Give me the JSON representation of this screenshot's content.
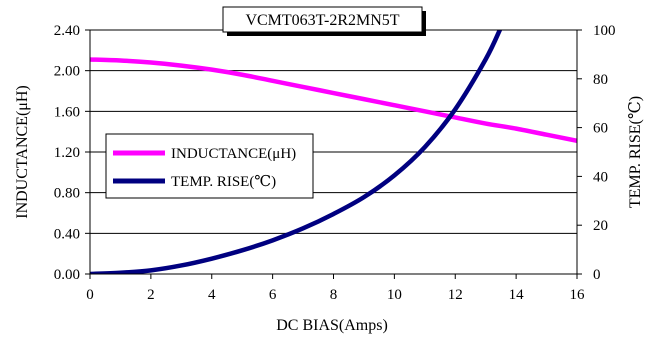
{
  "chart_data": {
    "type": "line",
    "title": "VCMT063T-2R2MN5T",
    "xlabel": "DC BIAS(Amps)",
    "ylabel_left": "INDUCTANCE(μH)",
    "ylabel_right": "TEMP. RISE(℃)",
    "xlim": [
      0,
      16
    ],
    "ylim_left": [
      0,
      2.4
    ],
    "ylim_right": [
      0,
      100
    ],
    "x_ticks": [
      "0",
      "2",
      "4",
      "6",
      "8",
      "10",
      "12",
      "14",
      "16"
    ],
    "y_left_ticks": [
      "0.00",
      "0.40",
      "0.80",
      "1.20",
      "1.60",
      "2.00",
      "2.40"
    ],
    "y_right_ticks": [
      "0",
      "20",
      "40",
      "60",
      "80",
      "100"
    ],
    "grid": "horizontal",
    "legend_position": "center-left",
    "series": [
      {
        "name": "INDUCTANCE(μH)",
        "axis": "left",
        "color": "#ff00ff",
        "x": [
          0,
          1,
          2,
          3,
          4,
          5,
          6,
          7,
          8,
          9,
          10,
          11,
          12,
          13,
          14,
          15,
          16
        ],
        "y": [
          2.11,
          2.1,
          2.08,
          2.05,
          2.01,
          1.96,
          1.9,
          1.84,
          1.78,
          1.72,
          1.66,
          1.6,
          1.54,
          1.48,
          1.43,
          1.37,
          1.31
        ]
      },
      {
        "name": "TEMP. RISE(℃)",
        "axis": "right",
        "color": "#000080",
        "x": [
          0,
          1,
          2,
          3,
          4,
          5,
          6,
          7,
          8,
          9,
          10,
          11,
          12,
          13,
          13.5
        ],
        "y": [
          0,
          0.5,
          1.5,
          3.5,
          6.3,
          9.7,
          13.8,
          18.7,
          24.6,
          31.5,
          40.4,
          52,
          67.5,
          88,
          101
        ]
      }
    ]
  }
}
